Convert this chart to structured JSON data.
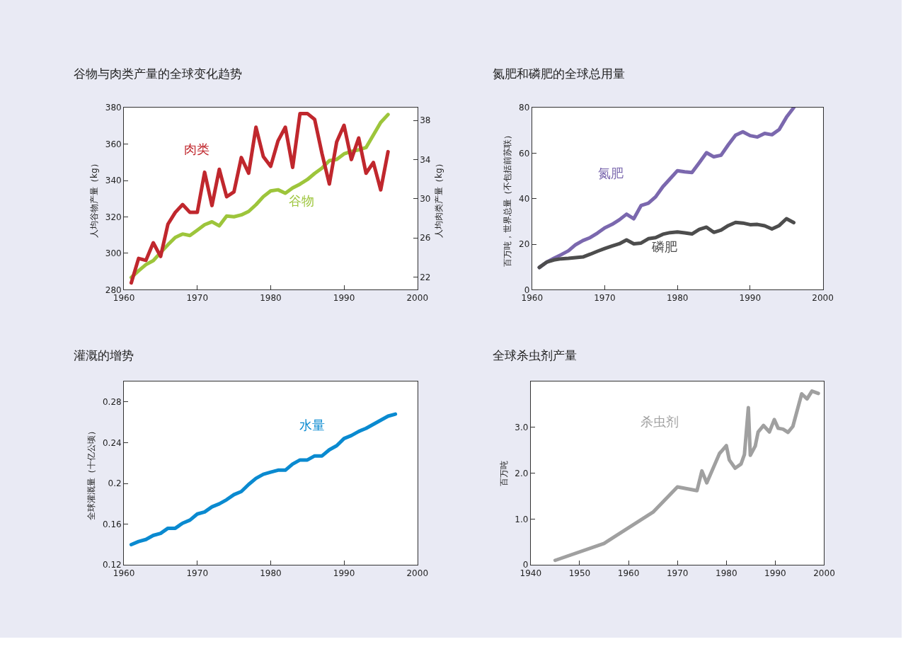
{
  "chart_data": [
    {
      "type": "line",
      "title": "谷物与肉类产量的全球变化趋势",
      "ylabel": "人均谷物产量（kg）",
      "y2label": "人均肉类产量（kg）",
      "xlim": [
        1960,
        2000
      ],
      "xticks": [
        1960,
        1970,
        1980,
        1990,
        2000
      ],
      "ylim": [
        280,
        380
      ],
      "yticks": [
        280,
        300,
        320,
        340,
        360,
        380
      ],
      "y2lim": [
        20.7,
        39.3
      ],
      "y2ticks": [
        22,
        26,
        30,
        34,
        38
      ],
      "grid": false,
      "x": [
        1961,
        1962,
        1963,
        1964,
        1965,
        1966,
        1967,
        1968,
        1969,
        1970,
        1971,
        1972,
        1973,
        1974,
        1975,
        1976,
        1977,
        1978,
        1979,
        1980,
        1981,
        1982,
        1983,
        1984,
        1985,
        1986,
        1987,
        1988,
        1989,
        1990,
        1991,
        1992,
        1993,
        1994,
        1995,
        1996
      ],
      "series": [
        {
          "name": "肉类",
          "color": "#c0272d",
          "axis": "y2",
          "values": [
            21.4,
            23.9,
            23.7,
            25.5,
            24.1,
            27.4,
            28.6,
            29.4,
            28.6,
            28.6,
            32.7,
            29.3,
            33.0,
            30.2,
            30.7,
            34.2,
            32.6,
            37.3,
            34.3,
            33.3,
            35.9,
            37.3,
            33.2,
            38.7,
            38.7,
            38.1,
            34.6,
            31.5,
            35.8,
            37.5,
            34.0,
            36.2,
            32.6,
            33.7,
            30.9,
            34.8
          ]
        },
        {
          "name": "谷物",
          "color": "#9dc53b",
          "values": [
            286.7,
            290.4,
            293.8,
            296,
            300.4,
            304.7,
            308.7,
            310.6,
            309.8,
            312.7,
            315.7,
            317.3,
            315.1,
            320.5,
            320.1,
            321.1,
            323,
            326.7,
            331.1,
            334.3,
            334.9,
            333,
            335.9,
            338,
            340.5,
            343.9,
            346.8,
            350.9,
            351.6,
            354.6,
            356,
            356.8,
            358.1,
            365,
            371.9,
            376.2
          ]
        }
      ]
    },
    {
      "type": "line",
      "title": "氮肥和磷肥的全球总用量",
      "ylabel": "百万吨，世界总量（不包括前苏联）",
      "xlim": [
        1960,
        2000
      ],
      "xticks": [
        1960,
        1970,
        1980,
        1990,
        2000
      ],
      "ylim": [
        0,
        80
      ],
      "yticks": [
        0,
        20,
        40,
        60,
        80
      ],
      "grid": false,
      "x": [
        1961,
        1962,
        1963,
        1964,
        1965,
        1966,
        1967,
        1968,
        1969,
        1970,
        1971,
        1972,
        1973,
        1974,
        1975,
        1976,
        1977,
        1978,
        1979,
        1980,
        1981,
        1982,
        1983,
        1984,
        1985,
        1986,
        1987,
        1988,
        1989,
        1990,
        1991,
        1992,
        1993,
        1994,
        1995,
        1996
      ],
      "series": [
        {
          "name": "氮肥",
          "color": "#7b68ae",
          "values": [
            9.8,
            12.1,
            13.8,
            15.4,
            17.1,
            19.8,
            21.6,
            22.9,
            24.9,
            27.2,
            28.7,
            30.7,
            33.2,
            31.2,
            37,
            38,
            40.8,
            45.3,
            48.8,
            52.3,
            51.8,
            51.5,
            55.8,
            60.2,
            58.4,
            59.1,
            63.7,
            67.9,
            69.4,
            67.7,
            67.1,
            68.7,
            68.1,
            70.4,
            75.8,
            80
          ]
        },
        {
          "name": "磷肥",
          "color": "#4d4d4d",
          "values": [
            9.8,
            12.1,
            13.1,
            13.6,
            13.8,
            14.1,
            14.4,
            15.6,
            16.9,
            18.1,
            19.2,
            20.2,
            21.9,
            20.2,
            20.5,
            22.4,
            22.9,
            24.4,
            25.1,
            25.4,
            25,
            24.5,
            26.5,
            27.5,
            25.2,
            26.2,
            28.2,
            29.6,
            29.3,
            28.6,
            28.7,
            28.1,
            26.7,
            28.2,
            31.2,
            29.5
          ]
        }
      ]
    },
    {
      "type": "line",
      "title": "灌溉的增势",
      "ylabel": "全球灌溉量（十亿公顷）",
      "xlim": [
        1960,
        2000
      ],
      "xticks": [
        1960,
        1970,
        1980,
        1990,
        2000
      ],
      "ylim": [
        0.12,
        0.3
      ],
      "yticks": [
        0.12,
        0.16,
        0.2,
        0.24,
        0.28
      ],
      "grid": false,
      "x": [
        1961,
        1962,
        1963,
        1964,
        1965,
        1966,
        1967,
        1968,
        1969,
        1970,
        1971,
        1972,
        1973,
        1974,
        1975,
        1976,
        1977,
        1978,
        1979,
        1980,
        1981,
        1982,
        1983,
        1984,
        1985,
        1986,
        1987,
        1988,
        1989,
        1990,
        1991,
        1992,
        1993,
        1994,
        1995,
        1996,
        1997
      ],
      "series": [
        {
          "name": "水量",
          "color": "#0a8ad0",
          "values": [
            0.14,
            0.143,
            0.145,
            0.149,
            0.151,
            0.156,
            0.156,
            0.161,
            0.164,
            0.17,
            0.172,
            0.177,
            0.18,
            0.184,
            0.189,
            0.192,
            0.199,
            0.205,
            0.209,
            0.211,
            0.213,
            0.213,
            0.219,
            0.223,
            0.223,
            0.227,
            0.227,
            0.233,
            0.237,
            0.244,
            0.247,
            0.251,
            0.254,
            0.258,
            0.262,
            0.266,
            0.268
          ]
        }
      ]
    },
    {
      "type": "line",
      "title": "全球杀虫剂产量",
      "ylabel": "百万吨",
      "xlim": [
        1940,
        2000
      ],
      "xticks": [
        1940,
        1950,
        1960,
        1970,
        1980,
        1990,
        2000
      ],
      "ylim": [
        0,
        4
      ],
      "yticks": [
        0,
        {
          "value": 1,
          "label": "1.0"
        },
        {
          "value": 2,
          "label": "2.0"
        },
        {
          "value": 3,
          "label": "3.0"
        }
      ],
      "grid": false,
      "series": [
        {
          "name": "杀虫剂",
          "color": "#a0a0a0",
          "x": [
            1945,
            1955,
            1965,
            1970,
            1974,
            1975,
            1976,
            1978.6,
            1980,
            1980.6,
            1981.8,
            1983,
            1983.7,
            1984.5,
            1984.9,
            1985.9,
            1986.5,
            1987.6,
            1988.8,
            1989.8,
            1990.6,
            1991.6,
            1992.6,
            1993.6,
            1995.4,
            1996.5,
            1997.5,
            1998.8
          ],
          "values": [
            0.1,
            0.47,
            1.15,
            1.7,
            1.62,
            2.05,
            1.79,
            2.43,
            2.6,
            2.29,
            2.11,
            2.2,
            2.41,
            3.43,
            2.39,
            2.59,
            2.9,
            3.04,
            2.9,
            3.17,
            2.98,
            2.96,
            2.89,
            3.02,
            3.73,
            3.62,
            3.79,
            3.74
          ]
        }
      ]
    }
  ]
}
